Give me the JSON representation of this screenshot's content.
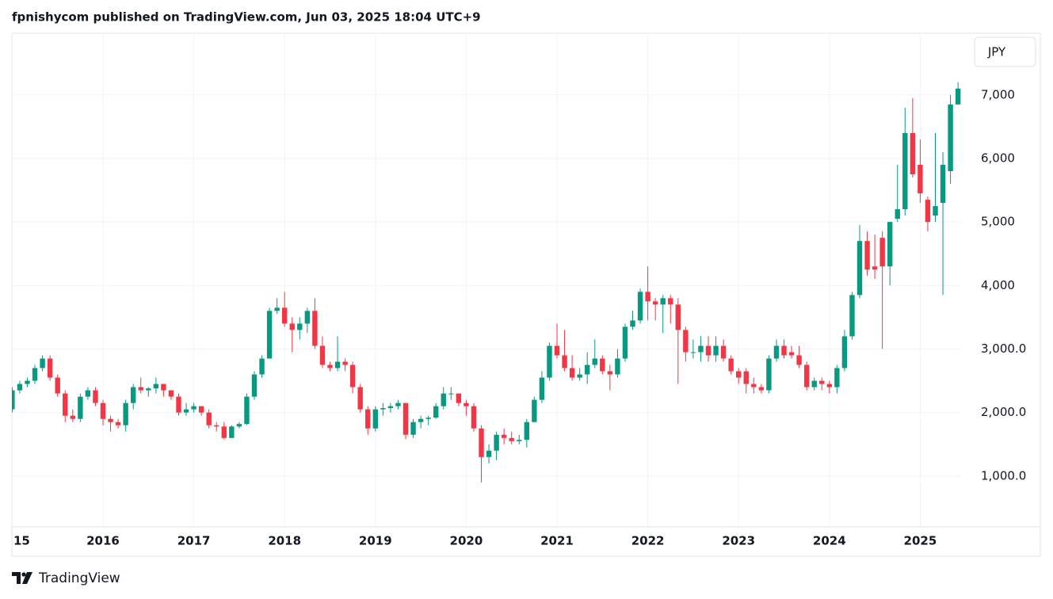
{
  "header": "fpnishycom published on TradingView.com, Jun 03, 2025 18:04 UTC+9",
  "footer": "TradingView",
  "chart_data": {
    "type": "candlestick",
    "currency": "JPY",
    "up_color": "#089981",
    "down_color": "#f23645",
    "grid": true,
    "ylim": [
      200,
      7970
    ],
    "yticks": [
      {
        "value": 1000,
        "label": "1,000.0"
      },
      {
        "value": 2000,
        "label": "2,000.0"
      },
      {
        "value": 3000,
        "label": "3,000.0"
      },
      {
        "value": 4000,
        "label": "4,000"
      },
      {
        "value": 5000,
        "label": "5,000"
      },
      {
        "value": 6000,
        "label": "6,000"
      },
      {
        "value": 7000,
        "label": "7,000"
      }
    ],
    "categories": [
      "15",
      null,
      null,
      null,
      null,
      null,
      null,
      null,
      null,
      null,
      null,
      null,
      "2016",
      null,
      null,
      null,
      null,
      null,
      null,
      null,
      null,
      null,
      null,
      null,
      "2017",
      null,
      null,
      null,
      null,
      null,
      null,
      null,
      null,
      null,
      null,
      null,
      "2018",
      null,
      null,
      null,
      null,
      null,
      null,
      null,
      null,
      null,
      null,
      null,
      "2019",
      null,
      null,
      null,
      null,
      null,
      null,
      null,
      null,
      null,
      null,
      null,
      "2020",
      null,
      null,
      null,
      null,
      null,
      null,
      null,
      null,
      null,
      null,
      null,
      "2021",
      null,
      null,
      null,
      null,
      null,
      null,
      null,
      null,
      null,
      null,
      null,
      "2022",
      null,
      null,
      null,
      null,
      null,
      null,
      null,
      null,
      null,
      null,
      null,
      "2023",
      null,
      null,
      null,
      null,
      null,
      null,
      null,
      null,
      null,
      null,
      null,
      "2024",
      null,
      null,
      null,
      null,
      null,
      null,
      null,
      null,
      null,
      null,
      null,
      "2025",
      null,
      null,
      null,
      null,
      null
    ],
    "open": [
      2050,
      2350,
      2450,
      2500,
      2700,
      2850,
      2550,
      2300,
      1950,
      1900,
      2250,
      2350,
      2150,
      1900,
      1850,
      1800,
      2150,
      2400,
      2350,
      2380,
      2450,
      2350,
      2250,
      2000,
      2050,
      2100,
      2000,
      1800,
      1780,
      1600,
      1780,
      1820,
      2250,
      2600,
      2850,
      3600,
      3650,
      3400,
      3300,
      3400,
      3600,
      3050,
      2750,
      2700,
      2800,
      2750,
      2400,
      2050,
      1750,
      2050,
      2070,
      2100,
      2150,
      1650,
      1850,
      1900,
      1920,
      2100,
      2300,
      2300,
      2150,
      2100,
      1750,
      1300,
      1400,
      1650,
      1600,
      1550,
      1570,
      1850,
      2200,
      2550,
      3050,
      2900,
      2700,
      2550,
      2600,
      2750,
      2850,
      2650,
      2600,
      2850,
      3350,
      3450,
      3900,
      3750,
      3700,
      3800,
      3700,
      3300,
      2950,
      2950,
      3050,
      2900,
      3050,
      2850,
      2650,
      2650,
      2450,
      2400,
      2350,
      2850,
      3050,
      2950,
      2900,
      2750,
      2400,
      2500,
      2450,
      2400,
      2700,
      3200,
      3850,
      4700,
      4300,
      4750,
      4300,
      5050,
      5200,
      6400,
      5900,
      5350,
      5100,
      5300,
      5800,
      6850
    ],
    "high": [
      2400,
      2500,
      2550,
      2750,
      2900,
      2900,
      2600,
      2350,
      2050,
      2300,
      2400,
      2400,
      2200,
      1950,
      1900,
      2200,
      2450,
      2550,
      2400,
      2550,
      2450,
      2350,
      2300,
      2150,
      2150,
      2100,
      2050,
      1850,
      1850,
      1800,
      1850,
      2300,
      2650,
      2900,
      3650,
      3800,
      3900,
      3500,
      3500,
      3650,
      3800,
      3200,
      2800,
      3200,
      2850,
      2800,
      2450,
      2100,
      2100,
      2150,
      2150,
      2200,
      2150,
      1900,
      1950,
      1950,
      2150,
      2400,
      2400,
      2300,
      2200,
      2150,
      1800,
      1500,
      1700,
      1750,
      1700,
      1650,
      1900,
      2250,
      2650,
      3100,
      3400,
      3300,
      2900,
      2700,
      2950,
      3150,
      2900,
      2750,
      3000,
      3400,
      3600,
      3950,
      4300,
      3800,
      3850,
      3850,
      3800,
      3350,
      3150,
      3200,
      3200,
      3200,
      3150,
      2900,
      2700,
      2700,
      2550,
      2450,
      2900,
      3150,
      3150,
      3050,
      3050,
      2800,
      2550,
      2550,
      2500,
      2750,
      3300,
      3900,
      4950,
      4850,
      4800,
      4850,
      5000,
      5900,
      6800,
      6950,
      6300,
      5400,
      6400,
      6100,
      7000,
      7200
    ],
    "low": [
      2000,
      2300,
      2400,
      2450,
      2650,
      2500,
      2250,
      1850,
      1850,
      1850,
      2200,
      2100,
      1800,
      1700,
      1750,
      1700,
      2050,
      2300,
      2250,
      2300,
      2250,
      2200,
      1950,
      1950,
      2000,
      1950,
      1750,
      1700,
      1580,
      1600,
      1750,
      1800,
      2200,
      2550,
      2850,
      3550,
      3350,
      2950,
      3150,
      3250,
      3000,
      2700,
      2650,
      2650,
      2650,
      2300,
      2000,
      1650,
      1700,
      1950,
      2000,
      2050,
      1580,
      1600,
      1750,
      1800,
      1900,
      2050,
      2200,
      2100,
      1950,
      1700,
      900,
      1200,
      1250,
      1500,
      1500,
      1500,
      1450,
      1850,
      2150,
      2500,
      2850,
      2650,
      2500,
      2500,
      2450,
      2700,
      2600,
      2350,
      2550,
      2800,
      3300,
      3400,
      3450,
      3450,
      3250,
      3400,
      2450,
      2800,
      2850,
      2800,
      2800,
      2800,
      2800,
      2600,
      2450,
      2300,
      2300,
      2300,
      2300,
      2800,
      2850,
      2850,
      2700,
      2350,
      2350,
      2350,
      2300,
      2300,
      2650,
      3150,
      3800,
      4150,
      4100,
      3000,
      4000,
      5000,
      5100,
      5700,
      5300,
      4850,
      5000,
      3850,
      5600,
      6850
    ],
    "close": [
      2350,
      2450,
      2500,
      2700,
      2850,
      2550,
      2300,
      1950,
      1900,
      2250,
      2350,
      2150,
      1900,
      1850,
      1800,
      2150,
      2400,
      2350,
      2380,
      2450,
      2350,
      2250,
      2000,
      2050,
      2100,
      2000,
      1800,
      1780,
      1600,
      1780,
      1820,
      2250,
      2600,
      2850,
      3600,
      3650,
      3400,
      3300,
      3400,
      3600,
      3050,
      2750,
      2700,
      2800,
      2750,
      2400,
      2050,
      1750,
      2050,
      2070,
      2100,
      2150,
      1650,
      1850,
      1900,
      1920,
      2100,
      2300,
      2300,
      2150,
      2100,
      1750,
      1300,
      1400,
      1650,
      1600,
      1550,
      1570,
      1850,
      2200,
      2550,
      3050,
      2900,
      2700,
      2550,
      2600,
      2750,
      2850,
      2650,
      2600,
      2850,
      3350,
      3450,
      3900,
      3750,
      3700,
      3800,
      3700,
      3300,
      2950,
      2950,
      3050,
      2900,
      3050,
      2850,
      2650,
      2550,
      2450,
      2400,
      2350,
      2850,
      3050,
      2900,
      2900,
      2750,
      2400,
      2500,
      2450,
      2400,
      2700,
      3200,
      3850,
      4700,
      4250,
      4250,
      4300,
      5000,
      5200,
      6400,
      5750,
      5450,
      5000,
      5250,
      5900,
      6850,
      7100
    ]
  }
}
